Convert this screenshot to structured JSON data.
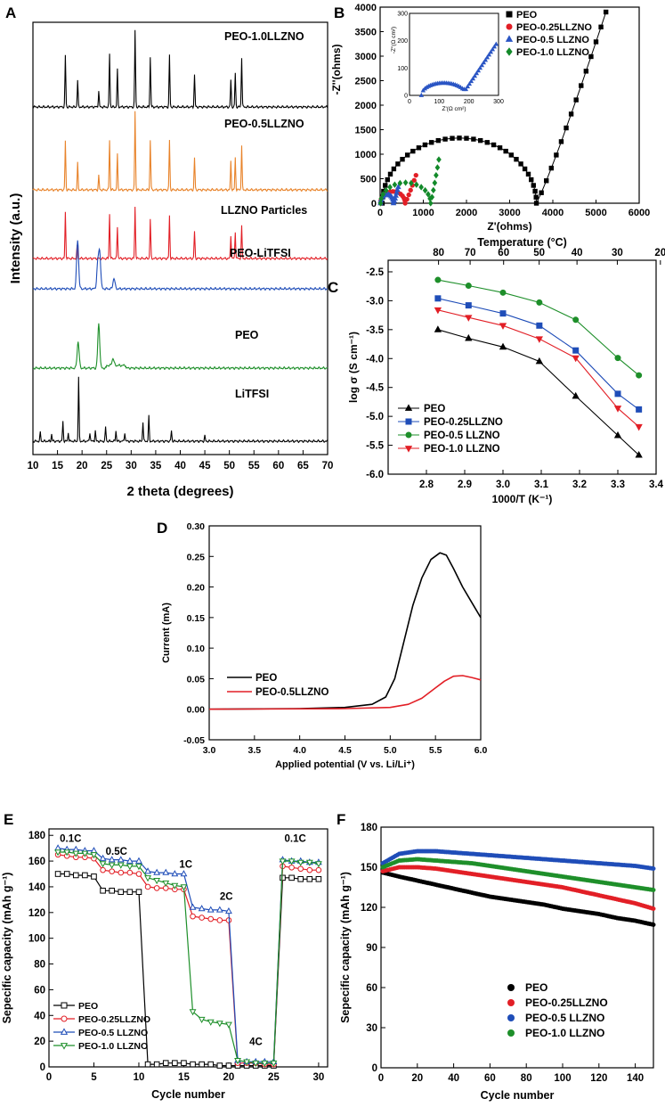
{
  "colors": {
    "black": "#000000",
    "orange": "#e8832a",
    "red": "#e21f26",
    "blue": "#1f4db8",
    "green": "#1e8f2a",
    "darkgreen": "#138a2a",
    "navy": "#2a55c4"
  },
  "chart_data": [
    {
      "panel": "A",
      "type": "line",
      "title": "",
      "xlabel": "2 theta (degrees)",
      "ylabel": "Intensity (a.u.)",
      "xlim": [
        10,
        70
      ],
      "xticks": [
        10,
        15,
        20,
        25,
        30,
        35,
        40,
        45,
        50,
        55,
        60,
        65,
        70
      ],
      "series": [
        {
          "name": "PEO-1.0LLZNO",
          "color": "#000000",
          "peaks": [
            16.6,
            19.1,
            23.4,
            25.6,
            27.2,
            30.8,
            33.9,
            37.8,
            42.9,
            50.3,
            51.2,
            52.5
          ]
        },
        {
          "name": "PEO-0.5LLZNO",
          "color": "#e8832a",
          "peaks": [
            16.6,
            19.1,
            23.4,
            25.6,
            27.2,
            30.8,
            33.9,
            37.8,
            42.9,
            50.3,
            51.2,
            52.5
          ]
        },
        {
          "name": "LLZNO Particles",
          "color": "#e21f26",
          "peaks": [
            16.6,
            19.0,
            25.6,
            27.2,
            30.8,
            33.9,
            37.8,
            42.9,
            50.3,
            51.2,
            52.5
          ]
        },
        {
          "name": "PEO-LiTFSI",
          "color": "#1f4db8",
          "peaks": [
            19.1,
            23.2,
            23.6,
            26.5
          ]
        },
        {
          "name": "PEO",
          "color": "#1e8f2a",
          "peaks": [
            19.2,
            23.4,
            26.3
          ]
        },
        {
          "name": "LiTFSI",
          "color": "#000000",
          "peaks": [
            11.5,
            13.8,
            16.1,
            17.2,
            19.3,
            21.6,
            22.7,
            24.8,
            26.9,
            28.7,
            32.4,
            33.6,
            38.2,
            45.0
          ]
        }
      ]
    },
    {
      "panel": "B",
      "type": "scatter",
      "xlabel": "Z'(ohms)",
      "ylabel": "-Z''(ohms)",
      "xlim": [
        0,
        6000
      ],
      "ylim": [
        0,
        4000
      ],
      "xticks": [
        0,
        1000,
        2000,
        3000,
        4000,
        5000,
        6000
      ],
      "yticks": [
        0,
        500,
        1000,
        1500,
        2000,
        2500,
        3000,
        3500,
        4000
      ],
      "series": [
        {
          "name": "PEO",
          "color": "#000000",
          "marker": "square",
          "arc_start": 50,
          "arc_end": 3620,
          "arc_peak": 1330,
          "tail_end": [
            5230,
            3900
          ]
        },
        {
          "name": "PEO-0.25LLZNO",
          "color": "#e21f26",
          "marker": "circle",
          "arc_start": 10,
          "arc_end": 580,
          "arc_peak": 240,
          "tail_end": [
            830,
            570
          ]
        },
        {
          "name": "PEO-0.5  LLZNO",
          "color": "#2a55c4",
          "marker": "triangle",
          "arc_start": 10,
          "arc_end": 310,
          "arc_peak": 180,
          "tail_end": [
            420,
            330
          ]
        },
        {
          "name": "PEO-1.0  LLZNO",
          "color": "#138a2a",
          "marker": "diamond",
          "arc_start": 10,
          "arc_end": 1170,
          "arc_peak": 420,
          "tail_end": [
            1360,
            890
          ]
        }
      ],
      "inset": {
        "xlabel": "Z'(Ω cm²)",
        "ylabel": "-Z''(Ω cm²)",
        "xlim": [
          0,
          300
        ],
        "ylim": [
          0,
          300
        ],
        "xticks": [
          0,
          100,
          200,
          300
        ],
        "yticks": [
          0,
          100,
          200,
          300
        ],
        "series": [
          {
            "name": "PEO-0.5  LLZNO",
            "color": "#2a55c4"
          }
        ]
      }
    },
    {
      "panel": "C",
      "type": "line",
      "xlabel": "1000/T (K⁻¹)",
      "ylabel": "log σ (S cm⁻¹)",
      "top_label": "Temperature (°C)",
      "xlim": [
        2.7,
        3.4
      ],
      "ylim": [
        -6.0,
        -2.3
      ],
      "xticks": [
        "2.8",
        "2.9",
        "3.0",
        "3.1",
        "3.2",
        "3.3",
        "3.4"
      ],
      "yticks": [
        "-2.5",
        "-3.0",
        "-3.5",
        "-4.0",
        "-4.5",
        "-5.0",
        "-5.5",
        "-6.0"
      ],
      "top_ticks": [
        "80",
        "70",
        "60",
        "50",
        "40",
        "30",
        "20"
      ],
      "x": [
        2.83,
        2.91,
        3.0,
        3.095,
        3.19,
        3.3,
        3.355
      ],
      "series": [
        {
          "name": "PEO",
          "color": "#000000",
          "marker": "triangle",
          "values": [
            -3.5,
            -3.65,
            -3.8,
            -4.05,
            -4.65,
            -5.33,
            -5.67
          ]
        },
        {
          "name": "PEO-0.25LLZNO",
          "color": "#1f4db8",
          "marker": "square",
          "values": [
            -2.96,
            -3.08,
            -3.22,
            -3.43,
            -3.86,
            -4.61,
            -4.88
          ]
        },
        {
          "name": "PEO-0.5  LLZNO",
          "color": "#1e8f2a",
          "marker": "circle",
          "values": [
            -2.64,
            -2.74,
            -2.86,
            -3.03,
            -3.33,
            -3.99,
            -4.29
          ]
        },
        {
          "name": "PEO-1.0  LLZNO",
          "color": "#e21f26",
          "marker": "triangle-down",
          "values": [
            -3.16,
            -3.29,
            -3.43,
            -3.66,
            -3.99,
            -4.86,
            -5.18
          ]
        }
      ]
    },
    {
      "panel": "D",
      "type": "line",
      "xlabel": "Applied potential (V vs. Li/Li⁺)",
      "ylabel": "Current (mA)",
      "xlim": [
        3.0,
        6.0
      ],
      "ylim": [
        -0.05,
        0.3
      ],
      "xticks": [
        "3.0",
        "3.5",
        "4.0",
        "4.5",
        "5.0",
        "5.5",
        "6.0"
      ],
      "yticks": [
        "-0.05",
        "0.00",
        "0.05",
        "0.10",
        "0.15",
        "0.20",
        "0.25",
        "0.30"
      ],
      "series": [
        {
          "name": "PEO",
          "color": "#000000",
          "x": [
            3.0,
            4.0,
            4.5,
            4.8,
            4.95,
            5.05,
            5.15,
            5.25,
            5.35,
            5.45,
            5.55,
            5.62,
            5.7,
            5.8,
            5.9,
            6.0
          ],
          "values": [
            0.0,
            0.001,
            0.003,
            0.008,
            0.02,
            0.05,
            0.11,
            0.17,
            0.215,
            0.245,
            0.256,
            0.252,
            0.23,
            0.2,
            0.175,
            0.15
          ]
        },
        {
          "name": "PEO-0.5LLZNO",
          "color": "#e21f26",
          "x": [
            3.0,
            4.5,
            5.0,
            5.2,
            5.35,
            5.5,
            5.6,
            5.7,
            5.8,
            5.9,
            6.0
          ],
          "values": [
            0.0,
            0.001,
            0.003,
            0.008,
            0.018,
            0.035,
            0.046,
            0.054,
            0.055,
            0.052,
            0.048
          ]
        }
      ]
    },
    {
      "panel": "E",
      "type": "line",
      "xlabel": "Cycle number",
      "ylabel": "Sepecific capacity (mAh g⁻¹)",
      "xlim": [
        0,
        31
      ],
      "ylim": [
        0,
        185
      ],
      "xticks": [
        "0",
        "5",
        "10",
        "15",
        "20",
        "25",
        "30"
      ],
      "yticks": [
        "0",
        "20",
        "40",
        "60",
        "80",
        "100",
        "120",
        "140",
        "160",
        "180"
      ],
      "annotations": [
        "0.1C",
        "0.5C",
        "1C",
        "2C",
        "4C",
        "0.1C"
      ],
      "x": [
        1,
        2,
        3,
        4,
        5,
        6,
        7,
        8,
        9,
        10,
        11,
        12,
        13,
        14,
        15,
        16,
        17,
        18,
        19,
        20,
        21,
        22,
        23,
        24,
        25,
        26,
        27,
        28,
        29,
        30
      ],
      "series": [
        {
          "name": "PEO",
          "color": "#000000",
          "marker": "square",
          "values": [
            150,
            150,
            149,
            149,
            148,
            137,
            137,
            136,
            136,
            136,
            2,
            2,
            3,
            3,
            3,
            2,
            2,
            2,
            1,
            1,
            1,
            1,
            1,
            1,
            1,
            147,
            147,
            146,
            146,
            146
          ]
        },
        {
          "name": "PEO-0.25LLZNO",
          "color": "#e21f26",
          "marker": "circle",
          "values": [
            165,
            164,
            163,
            163,
            162,
            153,
            152,
            151,
            151,
            150,
            140,
            139,
            139,
            138,
            138,
            117,
            116,
            115,
            114,
            114,
            3,
            3,
            3,
            2,
            2,
            156,
            155,
            154,
            153,
            153
          ]
        },
        {
          "name": "PEO-0.5  LLZNO",
          "color": "#1f4db8",
          "marker": "triangle",
          "values": [
            170,
            169,
            169,
            168,
            168,
            162,
            161,
            161,
            160,
            160,
            152,
            151,
            151,
            150,
            150,
            124,
            123,
            122,
            122,
            121,
            5,
            4,
            4,
            4,
            4,
            161,
            160,
            160,
            159,
            159
          ]
        },
        {
          "name": "PEO-1.0  LLZNO",
          "color": "#1e8f2a",
          "marker": "triangle-down",
          "values": [
            167,
            167,
            166,
            166,
            165,
            158,
            157,
            157,
            156,
            156,
            147,
            145,
            143,
            141,
            140,
            43,
            37,
            35,
            34,
            33,
            5,
            4,
            3,
            3,
            3,
            160,
            160,
            159,
            159,
            158
          ]
        }
      ]
    },
    {
      "panel": "F",
      "type": "scatter",
      "xlabel": "Cycle number",
      "ylabel": "Sepecific capacity (mAh g⁻¹)",
      "xlim": [
        0,
        150
      ],
      "ylim": [
        0,
        180
      ],
      "xticks": [
        "0",
        "20",
        "40",
        "60",
        "80",
        "100",
        "120",
        "140"
      ],
      "yticks": [
        "0",
        "30",
        "60",
        "90",
        "120",
        "150",
        "180"
      ],
      "x": [
        1,
        10,
        20,
        30,
        40,
        50,
        60,
        70,
        80,
        90,
        100,
        110,
        120,
        130,
        140,
        150
      ],
      "series": [
        {
          "name": "PEO",
          "color": "#000000",
          "values": [
            146,
            143,
            140,
            137,
            134,
            131,
            128,
            126,
            124,
            122,
            119,
            117,
            115,
            112,
            110,
            107
          ]
        },
        {
          "name": "PEO-0.25LLZNO",
          "color": "#e21f26",
          "values": [
            147,
            150,
            150,
            149,
            147,
            145,
            143,
            141,
            139,
            137,
            135,
            132,
            129,
            126,
            123,
            119
          ]
        },
        {
          "name": "PEO-0.5  LLZNO",
          "color": "#1f4db8",
          "values": [
            153,
            160,
            162,
            162,
            161,
            160,
            159,
            158,
            157,
            156,
            155,
            154,
            153,
            152,
            151,
            149
          ]
        },
        {
          "name": "PEO-1.0  LLZNO",
          "color": "#1e8f2a",
          "values": [
            150,
            155,
            156,
            155,
            154,
            153,
            151,
            149,
            147,
            145,
            143,
            141,
            139,
            137,
            135,
            133
          ]
        }
      ]
    }
  ]
}
